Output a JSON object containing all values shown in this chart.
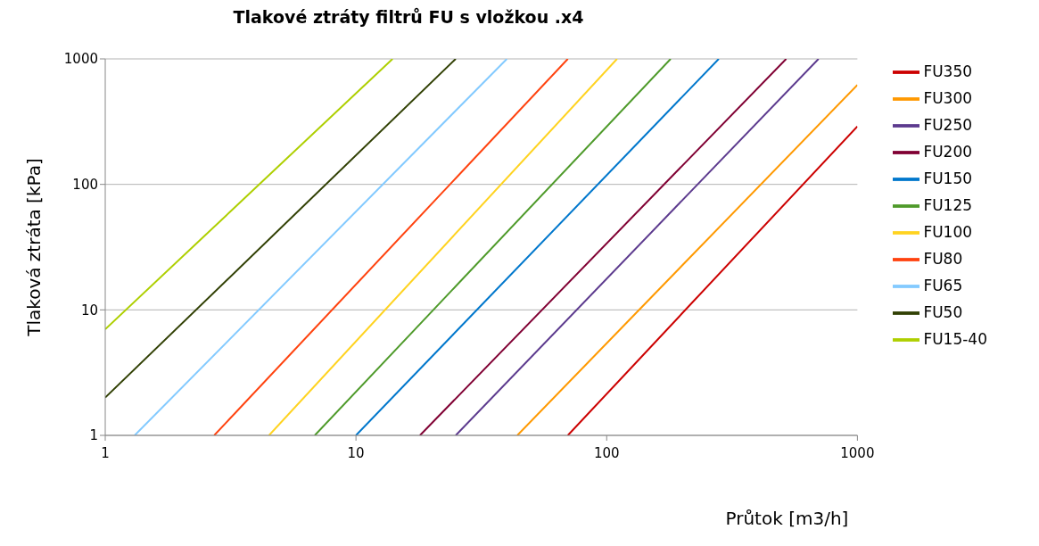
{
  "chart_data": {
    "type": "line",
    "title": "Tlakové ztráty filtrů FU s vložkou .x4",
    "xlabel": "Průtok [m3/h]",
    "ylabel": "Tlaková ztráta [kPa]",
    "log": "xy",
    "xlim": [
      1,
      1000
    ],
    "xticks": [
      1,
      10,
      100,
      1000
    ],
    "ylim": [
      1,
      1000
    ],
    "yticks": [
      1,
      10,
      100,
      1000
    ],
    "grid": "y",
    "legend": "right",
    "marker": "none",
    "line_style": "solid",
    "series": [
      {
        "name": "FU350",
        "color": "#cc0000",
        "x": [
          70,
          1000
        ],
        "values": [
          1,
          290
        ]
      },
      {
        "name": "FU300",
        "color": "#ff9900",
        "x": [
          44,
          1000
        ],
        "values": [
          1,
          620
        ]
      },
      {
        "name": "FU250",
        "color": "#5c3a8e",
        "x": [
          25,
          700
        ],
        "values": [
          1,
          1000
        ]
      },
      {
        "name": "FU200",
        "color": "#800033",
        "x": [
          18,
          520
        ],
        "values": [
          1,
          1000
        ]
      },
      {
        "name": "FU150",
        "color": "#0077cc",
        "x": [
          10,
          280
        ],
        "values": [
          1,
          1000
        ]
      },
      {
        "name": "FU125",
        "color": "#4e9a2a",
        "x": [
          6.85,
          180
        ],
        "values": [
          1,
          1000
        ]
      },
      {
        "name": "FU100",
        "color": "#ffd320",
        "x": [
          4.5,
          110
        ],
        "values": [
          1,
          1000
        ]
      },
      {
        "name": "FU80",
        "color": "#ff420e",
        "x": [
          2.72,
          70
        ],
        "values": [
          1,
          1000
        ]
      },
      {
        "name": "FU65",
        "color": "#83caff",
        "x": [
          1.31,
          40
        ],
        "values": [
          1,
          1000
        ]
      },
      {
        "name": "FU50",
        "color": "#314004",
        "x": [
          1,
          25
        ],
        "values": [
          2,
          1000
        ]
      },
      {
        "name": "FU15-40",
        "color": "#aecf00",
        "x": [
          1,
          14
        ],
        "values": [
          7,
          1000
        ]
      }
    ]
  }
}
